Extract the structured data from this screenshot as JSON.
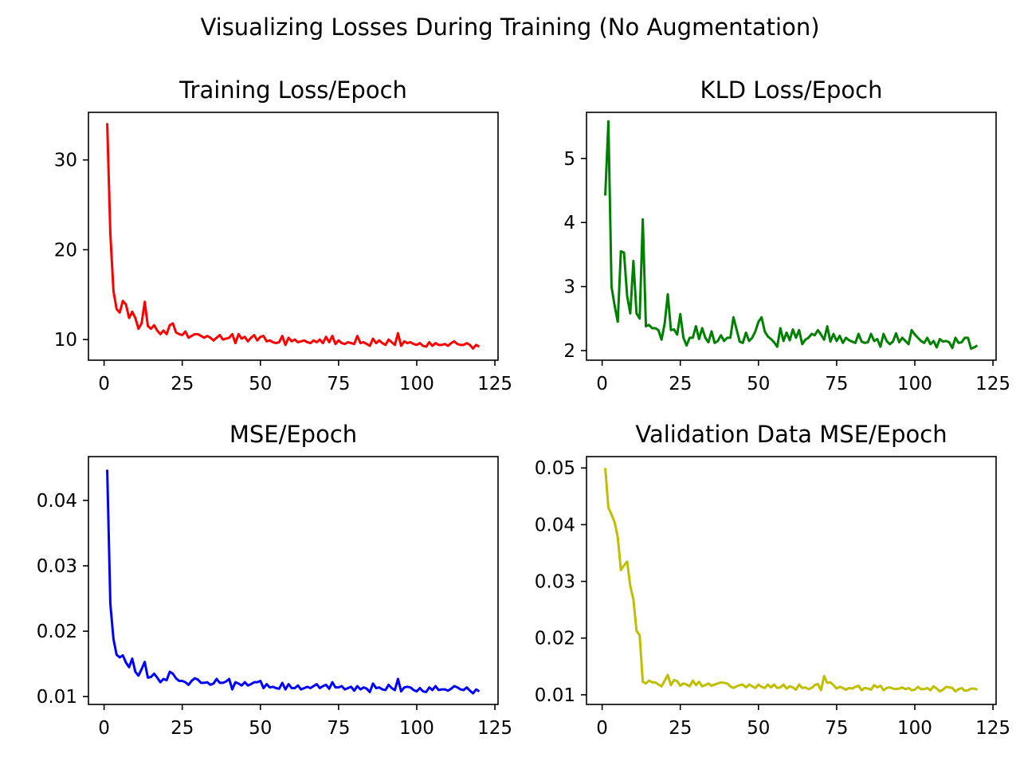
{
  "figure": {
    "suptitle": "Visualizing Losses During Training (No Augmentation)"
  },
  "chart_data": [
    {
      "type": "line",
      "title": "Training Loss/Epoch",
      "xlabel": "",
      "ylabel": "",
      "color": "#ff0000",
      "xlim": [
        -5,
        126
      ],
      "ylim": [
        7.7,
        35.3
      ],
      "xticks": [
        0,
        25,
        50,
        75,
        100,
        125
      ],
      "yticks": [
        10,
        20,
        30
      ],
      "grid": false,
      "x": [
        1,
        2,
        3,
        4,
        5,
        6,
        7,
        8,
        9,
        10,
        11,
        12,
        13,
        14,
        15,
        16,
        17,
        18,
        19,
        20,
        21,
        22,
        23,
        24,
        25,
        26,
        27,
        28,
        29,
        30,
        31,
        32,
        33,
        34,
        35,
        36,
        37,
        38,
        39,
        40,
        41,
        42,
        43,
        44,
        45,
        46,
        47,
        48,
        49,
        50,
        51,
        52,
        53,
        54,
        55,
        56,
        57,
        58,
        59,
        60,
        61,
        62,
        63,
        64,
        65,
        66,
        67,
        68,
        69,
        70,
        71,
        72,
        73,
        74,
        75,
        76,
        77,
        78,
        79,
        80,
        81,
        82,
        83,
        84,
        85,
        86,
        87,
        88,
        89,
        90,
        91,
        92,
        93,
        94,
        95,
        96,
        97,
        98,
        99,
        100,
        101,
        102,
        103,
        104,
        105,
        106,
        107,
        108,
        109,
        110,
        111,
        112,
        113,
        114,
        115,
        116,
        117,
        118,
        119,
        120
      ],
      "y": [
        34.1,
        21.8,
        15.4,
        13.4,
        13.0,
        14.3,
        13.9,
        12.4,
        13.1,
        12.4,
        11.2,
        11.8,
        14.2,
        11.5,
        11.2,
        11.6,
        11.0,
        10.6,
        11.0,
        10.6,
        11.6,
        11.8,
        10.8,
        10.6,
        10.5,
        10.9,
        10.2,
        10.4,
        10.6,
        10.6,
        10.4,
        10.2,
        10.4,
        10.2,
        9.9,
        10.2,
        10.5,
        10.0,
        10.1,
        10.2,
        10.6,
        9.6,
        10.6,
        10.1,
        10.3,
        9.8,
        10.2,
        10.5,
        9.9,
        10.3,
        10.4,
        9.8,
        9.9,
        9.7,
        9.6,
        9.7,
        10.4,
        9.4,
        10.2,
        9.8,
        10.0,
        9.7,
        9.8,
        9.9,
        9.7,
        9.6,
        9.9,
        9.7,
        10.0,
        9.6,
        10.3,
        9.7,
        10.4,
        9.5,
        9.9,
        9.6,
        9.5,
        9.7,
        9.6,
        9.5,
        10.4,
        9.6,
        9.7,
        9.5,
        9.3,
        10.1,
        9.6,
        9.9,
        9.6,
        9.4,
        10.0,
        9.7,
        9.4,
        10.7,
        9.3,
        9.8,
        9.6,
        9.7,
        9.5,
        9.4,
        9.6,
        9.3,
        9.2,
        9.7,
        9.3,
        9.6,
        9.4,
        9.4,
        9.5,
        9.3,
        9.6,
        9.8,
        9.5,
        9.4,
        9.4,
        9.6,
        9.4,
        9.0,
        9.4,
        9.2
      ]
    },
    {
      "type": "line",
      "title": "KLD Loss/Epoch",
      "xlabel": "",
      "ylabel": "",
      "color": "#008000",
      "xlim": [
        -5,
        126
      ],
      "ylim": [
        1.85,
        5.72
      ],
      "xticks": [
        0,
        25,
        50,
        75,
        100,
        125
      ],
      "yticks": [
        2,
        3,
        4,
        5
      ],
      "grid": false,
      "x": [
        1,
        2,
        3,
        4,
        5,
        6,
        7,
        8,
        9,
        10,
        11,
        12,
        13,
        14,
        15,
        16,
        17,
        18,
        19,
        20,
        21,
        22,
        23,
        24,
        25,
        26,
        27,
        28,
        29,
        30,
        31,
        32,
        33,
        34,
        35,
        36,
        37,
        38,
        39,
        40,
        41,
        42,
        43,
        44,
        45,
        46,
        47,
        48,
        49,
        50,
        51,
        52,
        53,
        54,
        55,
        56,
        57,
        58,
        59,
        60,
        61,
        62,
        63,
        64,
        65,
        66,
        67,
        68,
        69,
        70,
        71,
        72,
        73,
        74,
        75,
        76,
        77,
        78,
        79,
        80,
        81,
        82,
        83,
        84,
        85,
        86,
        87,
        88,
        89,
        90,
        91,
        92,
        93,
        94,
        95,
        96,
        97,
        98,
        99,
        100,
        101,
        102,
        103,
        104,
        105,
        106,
        107,
        108,
        109,
        110,
        111,
        112,
        113,
        114,
        115,
        116,
        117,
        118,
        119,
        120
      ],
      "y": [
        4.42,
        5.58,
        3.0,
        2.7,
        2.45,
        3.55,
        3.53,
        2.85,
        2.58,
        3.4,
        2.58,
        2.5,
        4.05,
        2.38,
        2.4,
        2.35,
        2.35,
        2.32,
        2.17,
        2.42,
        2.88,
        2.32,
        2.33,
        2.25,
        2.57,
        2.2,
        2.08,
        2.2,
        2.2,
        2.38,
        2.18,
        2.35,
        2.2,
        2.13,
        2.3,
        2.12,
        2.15,
        2.24,
        2.15,
        2.2,
        2.2,
        2.52,
        2.33,
        2.14,
        2.12,
        2.28,
        2.15,
        2.2,
        2.3,
        2.45,
        2.52,
        2.3,
        2.22,
        2.18,
        2.13,
        2.06,
        2.35,
        2.15,
        2.28,
        2.16,
        2.33,
        2.2,
        2.32,
        2.1,
        2.17,
        2.2,
        2.26,
        2.24,
        2.32,
        2.25,
        2.17,
        2.38,
        2.14,
        2.26,
        2.15,
        2.23,
        2.12,
        2.2,
        2.16,
        2.14,
        2.12,
        2.26,
        2.14,
        2.12,
        2.13,
        2.26,
        2.15,
        2.18,
        2.06,
        2.26,
        2.15,
        2.1,
        2.14,
        2.27,
        2.13,
        2.2,
        2.15,
        2.1,
        2.32,
        2.25,
        2.2,
        2.15,
        2.12,
        2.2,
        2.1,
        2.15,
        2.05,
        2.18,
        2.14,
        2.15,
        2.13,
        2.04,
        2.2,
        2.12,
        2.13,
        2.2,
        2.2,
        2.03,
        2.05,
        2.08
      ]
    },
    {
      "type": "line",
      "title": "MSE/Epoch",
      "xlabel": "",
      "ylabel": "",
      "color": "#0000ff",
      "xlim": [
        -5,
        126
      ],
      "ylim": [
        0.0088,
        0.0467
      ],
      "xticks": [
        0,
        25,
        50,
        75,
        100,
        125
      ],
      "yticks": [
        0.01,
        0.02,
        0.03,
        0.04
      ],
      "grid": false,
      "x": [
        1,
        2,
        3,
        4,
        5,
        6,
        7,
        8,
        9,
        10,
        11,
        12,
        13,
        14,
        15,
        16,
        17,
        18,
        19,
        20,
        21,
        22,
        23,
        24,
        25,
        26,
        27,
        28,
        29,
        30,
        31,
        32,
        33,
        34,
        35,
        36,
        37,
        38,
        39,
        40,
        41,
        42,
        43,
        44,
        45,
        46,
        47,
        48,
        49,
        50,
        51,
        52,
        53,
        54,
        55,
        56,
        57,
        58,
        59,
        60,
        61,
        62,
        63,
        64,
        65,
        66,
        67,
        68,
        69,
        70,
        71,
        72,
        73,
        74,
        75,
        76,
        77,
        78,
        79,
        80,
        81,
        82,
        83,
        84,
        85,
        86,
        87,
        88,
        89,
        90,
        91,
        92,
        93,
        94,
        95,
        96,
        97,
        98,
        99,
        100,
        101,
        102,
        103,
        104,
        105,
        106,
        107,
        108,
        109,
        110,
        111,
        112,
        113,
        114,
        115,
        116,
        117,
        118,
        119,
        120
      ],
      "y": [
        0.0447,
        0.0242,
        0.0188,
        0.0164,
        0.016,
        0.0163,
        0.0152,
        0.0145,
        0.0158,
        0.0138,
        0.0132,
        0.0142,
        0.0153,
        0.0129,
        0.013,
        0.0135,
        0.0129,
        0.0122,
        0.0127,
        0.0125,
        0.0138,
        0.0135,
        0.0128,
        0.0124,
        0.0124,
        0.0122,
        0.0118,
        0.0124,
        0.0128,
        0.0126,
        0.0121,
        0.0121,
        0.0122,
        0.0118,
        0.012,
        0.0127,
        0.0121,
        0.0121,
        0.0123,
        0.0127,
        0.0111,
        0.0122,
        0.012,
        0.0117,
        0.0122,
        0.0117,
        0.0119,
        0.0122,
        0.0122,
        0.0124,
        0.0113,
        0.0119,
        0.0114,
        0.0115,
        0.0113,
        0.0112,
        0.0121,
        0.0111,
        0.0119,
        0.0113,
        0.0113,
        0.0117,
        0.0111,
        0.0113,
        0.0115,
        0.0113,
        0.0116,
        0.0119,
        0.0113,
        0.0116,
        0.0118,
        0.0112,
        0.0122,
        0.0114,
        0.0114,
        0.0116,
        0.0111,
        0.0113,
        0.0115,
        0.0109,
        0.0116,
        0.0111,
        0.0114,
        0.0112,
        0.0107,
        0.012,
        0.0113,
        0.0114,
        0.0111,
        0.011,
        0.0118,
        0.0113,
        0.011,
        0.0127,
        0.0108,
        0.0114,
        0.0115,
        0.0114,
        0.011,
        0.0108,
        0.0113,
        0.0108,
        0.0107,
        0.0114,
        0.011,
        0.0116,
        0.011,
        0.0111,
        0.0111,
        0.0109,
        0.0112,
        0.0116,
        0.0114,
        0.0111,
        0.011,
        0.0114,
        0.0109,
        0.0105,
        0.0111,
        0.0108
      ]
    },
    {
      "type": "line",
      "title": "Validation Data MSE/Epoch",
      "xlabel": "",
      "ylabel": "",
      "color": "#bfbf00",
      "xlim": [
        -5,
        126
      ],
      "ylim": [
        0.0083,
        0.052
      ],
      "xticks": [
        0,
        25,
        50,
        75,
        100,
        125
      ],
      "yticks": [
        0.01,
        0.02,
        0.03,
        0.04,
        0.05
      ],
      "grid": false,
      "x": [
        1,
        2,
        3,
        4,
        5,
        6,
        7,
        8,
        9,
        10,
        11,
        12,
        13,
        14,
        15,
        16,
        17,
        18,
        19,
        20,
        21,
        22,
        23,
        24,
        25,
        26,
        27,
        28,
        29,
        30,
        31,
        32,
        33,
        34,
        35,
        36,
        37,
        38,
        39,
        40,
        41,
        42,
        43,
        44,
        45,
        46,
        47,
        48,
        49,
        50,
        51,
        52,
        53,
        54,
        55,
        56,
        57,
        58,
        59,
        60,
        61,
        62,
        63,
        64,
        65,
        66,
        67,
        68,
        69,
        70,
        71,
        72,
        73,
        74,
        75,
        76,
        77,
        78,
        79,
        80,
        81,
        82,
        83,
        84,
        85,
        86,
        87,
        88,
        89,
        90,
        91,
        92,
        93,
        94,
        95,
        96,
        97,
        98,
        99,
        100,
        101,
        102,
        103,
        104,
        105,
        106,
        107,
        108,
        109,
        110,
        111,
        112,
        113,
        114,
        115,
        116,
        117,
        118,
        119,
        120
      ],
      "y": [
        0.05,
        0.043,
        0.0418,
        0.0404,
        0.0378,
        0.032,
        0.0328,
        0.0335,
        0.0292,
        0.0268,
        0.0213,
        0.0205,
        0.0123,
        0.012,
        0.0125,
        0.0122,
        0.0122,
        0.0118,
        0.0115,
        0.0125,
        0.0135,
        0.0117,
        0.0126,
        0.0124,
        0.0116,
        0.012,
        0.0118,
        0.0115,
        0.0125,
        0.0117,
        0.0123,
        0.0115,
        0.0117,
        0.012,
        0.0116,
        0.0118,
        0.012,
        0.0122,
        0.0121,
        0.012,
        0.0115,
        0.0112,
        0.0115,
        0.0117,
        0.0118,
        0.0113,
        0.0118,
        0.0115,
        0.0112,
        0.0118,
        0.0114,
        0.0112,
        0.0118,
        0.0113,
        0.0118,
        0.0112,
        0.0113,
        0.0118,
        0.0111,
        0.0115,
        0.0113,
        0.0109,
        0.0118,
        0.0112,
        0.0113,
        0.011,
        0.0112,
        0.0117,
        0.0119,
        0.0108,
        0.0133,
        0.0121,
        0.0122,
        0.0117,
        0.0111,
        0.0114,
        0.0112,
        0.0109,
        0.0112,
        0.0111,
        0.0114,
        0.0116,
        0.0108,
        0.0112,
        0.0111,
        0.0109,
        0.0117,
        0.0113,
        0.0116,
        0.0108,
        0.0112,
        0.0113,
        0.0111,
        0.011,
        0.0111,
        0.0113,
        0.011,
        0.0112,
        0.0108,
        0.0109,
        0.0114,
        0.011,
        0.011,
        0.0112,
        0.0108,
        0.0115,
        0.0111,
        0.0106,
        0.0109,
        0.0114,
        0.0113,
        0.0112,
        0.0106,
        0.011,
        0.0112,
        0.0107,
        0.0108,
        0.0111,
        0.0111,
        0.0109
      ]
    }
  ]
}
